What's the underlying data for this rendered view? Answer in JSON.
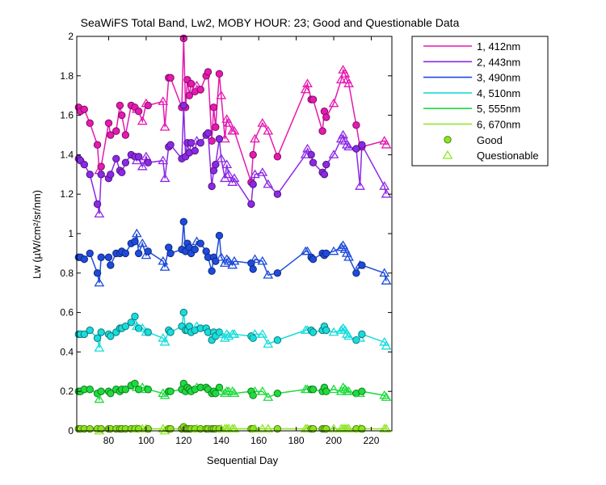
{
  "chart_data": {
    "type": "line",
    "title": "SeaWiFS Total Band,  Lw2, MOBY HOUR: 23;  Good and Questionable Data",
    "xlabel": "Sequential Day",
    "ylabel": "Lw (µW/cm²/sr/nm)",
    "xlim": [
      63,
      231
    ],
    "ylim": [
      0,
      2
    ],
    "xticks": [
      80,
      100,
      120,
      140,
      160,
      180,
      200,
      220
    ],
    "yticks": [
      0,
      0.2,
      0.4,
      0.6,
      0.8,
      1,
      1.2,
      1.4,
      1.6,
      1.8,
      2
    ],
    "grid": false,
    "legend_position": "outside-top-right",
    "x": [
      64,
      65,
      67,
      70,
      74,
      75,
      76,
      80,
      81,
      84,
      86,
      87,
      89,
      92,
      94,
      95,
      96,
      98,
      100,
      101,
      109,
      110,
      112,
      113,
      119,
      120,
      121,
      122,
      123,
      124,
      126,
      127,
      129,
      132,
      133,
      135,
      136,
      137,
      139,
      140,
      142,
      143,
      144,
      146,
      147,
      156,
      157,
      158,
      162,
      165,
      170,
      185,
      186,
      188,
      189,
      194,
      195,
      196,
      200,
      204,
      205,
      206,
      207,
      208,
      212,
      214,
      215,
      227,
      228
    ],
    "series": [
      {
        "name": "1, 412nm",
        "color": "#e619b0",
        "values": [
          1.64,
          1.62,
          1.63,
          1.56,
          1.45,
          1.32,
          1.34,
          1.56,
          1.5,
          1.52,
          1.65,
          1.6,
          1.5,
          1.65,
          1.64,
          1.63,
          1.62,
          1.57,
          1.66,
          1.65,
          1.67,
          1.54,
          1.79,
          1.79,
          1.64,
          1.99,
          1.64,
          1.78,
          1.7,
          1.76,
          1.72,
          1.75,
          1.73,
          1.8,
          1.82,
          1.47,
          1.64,
          1.54,
          1.81,
          1.7,
          1.48,
          1.58,
          1.56,
          1.52,
          1.52,
          1.26,
          1.4,
          1.48,
          1.56,
          1.52,
          1.39,
          1.73,
          1.76,
          1.68,
          1.68,
          1.52,
          1.62,
          1.59,
          1.66,
          1.78,
          1.83,
          1.81,
          1.78,
          1.76,
          1.55,
          1.44,
          1.44,
          1.47,
          1.45
        ]
      },
      {
        "name": "2, 443nm",
        "color": "#8c28e6",
        "values": [
          1.38,
          1.37,
          1.35,
          1.3,
          1.15,
          1.1,
          1.3,
          1.28,
          1.3,
          1.38,
          1.32,
          1.31,
          1.36,
          1.4,
          1.39,
          1.37,
          1.39,
          1.34,
          1.39,
          1.36,
          1.37,
          1.28,
          1.44,
          1.45,
          1.38,
          1.65,
          1.39,
          1.46,
          1.41,
          1.46,
          1.42,
          1.47,
          1.46,
          1.5,
          1.51,
          1.24,
          1.32,
          1.35,
          1.48,
          1.38,
          1.28,
          1.35,
          1.3,
          1.26,
          1.28,
          1.15,
          1.25,
          1.3,
          1.31,
          1.25,
          1.2,
          1.4,
          1.43,
          1.4,
          1.36,
          1.31,
          1.3,
          1.35,
          1.4,
          1.48,
          1.5,
          1.47,
          1.45,
          1.44,
          1.43,
          1.24,
          1.45,
          1.24,
          1.2
        ]
      },
      {
        "name": "3, 490nm",
        "color": "#1e4bdc",
        "values": [
          0.88,
          0.88,
          0.87,
          0.9,
          0.8,
          0.75,
          0.88,
          0.88,
          0.84,
          0.9,
          0.9,
          0.91,
          0.9,
          0.95,
          0.96,
          1.0,
          0.9,
          0.95,
          0.89,
          0.91,
          0.86,
          0.83,
          0.93,
          0.9,
          0.92,
          1.06,
          0.91,
          0.95,
          0.93,
          0.9,
          0.92,
          0.96,
          0.95,
          0.91,
          0.88,
          0.81,
          0.88,
          0.86,
          0.99,
          0.88,
          0.85,
          0.87,
          0.86,
          0.84,
          0.86,
          0.85,
          0.82,
          0.87,
          0.86,
          0.79,
          0.8,
          0.91,
          0.91,
          0.88,
          0.87,
          0.9,
          0.89,
          0.9,
          0.91,
          0.93,
          0.94,
          0.92,
          0.9,
          0.88,
          0.8,
          0.84,
          0.84,
          0.8,
          0.76
        ]
      },
      {
        "name": "4, 510nm",
        "color": "#19dcdc",
        "values": [
          0.49,
          0.49,
          0.49,
          0.51,
          0.47,
          0.42,
          0.5,
          0.49,
          0.48,
          0.5,
          0.52,
          0.52,
          0.53,
          0.55,
          0.58,
          0.53,
          0.52,
          0.52,
          0.5,
          0.5,
          0.47,
          0.45,
          0.51,
          0.5,
          0.53,
          0.6,
          0.51,
          0.51,
          0.53,
          0.5,
          0.51,
          0.53,
          0.52,
          0.52,
          0.5,
          0.46,
          0.5,
          0.48,
          0.5,
          0.49,
          0.47,
          0.49,
          0.48,
          0.49,
          0.49,
          0.48,
          0.47,
          0.49,
          0.49,
          0.44,
          0.46,
          0.51,
          0.51,
          0.51,
          0.5,
          0.51,
          0.53,
          0.51,
          0.5,
          0.51,
          0.52,
          0.51,
          0.49,
          0.48,
          0.46,
          0.47,
          0.49,
          0.45,
          0.43
        ]
      },
      {
        "name": "5, 555nm",
        "color": "#1edc3c",
        "values": [
          0.2,
          0.2,
          0.21,
          0.21,
          0.19,
          0.16,
          0.2,
          0.2,
          0.19,
          0.21,
          0.2,
          0.21,
          0.21,
          0.23,
          0.24,
          0.22,
          0.21,
          0.22,
          0.21,
          0.21,
          0.19,
          0.18,
          0.2,
          0.2,
          0.21,
          0.24,
          0.2,
          0.22,
          0.21,
          0.2,
          0.21,
          0.22,
          0.22,
          0.22,
          0.21,
          0.19,
          0.2,
          0.19,
          0.22,
          0.2,
          0.19,
          0.2,
          0.2,
          0.2,
          0.19,
          0.2,
          0.18,
          0.2,
          0.2,
          0.17,
          0.19,
          0.21,
          0.21,
          0.21,
          0.21,
          0.2,
          0.22,
          0.2,
          0.21,
          0.2,
          0.22,
          0.21,
          0.2,
          0.2,
          0.19,
          0.19,
          0.2,
          0.18,
          0.17
        ]
      },
      {
        "name": "6, 670nm",
        "color": "#8ce61e",
        "values": [
          0.01,
          0.01,
          0.01,
          0.01,
          0.01,
          0.0,
          0.01,
          0.01,
          0.01,
          0.01,
          0.01,
          0.01,
          0.01,
          0.01,
          0.01,
          0.01,
          0.01,
          0.01,
          0.01,
          0.01,
          0.01,
          0.0,
          0.01,
          0.01,
          0.01,
          0.02,
          0.01,
          0.01,
          0.01,
          0.01,
          0.01,
          0.01,
          0.01,
          0.01,
          0.01,
          0.01,
          0.01,
          0.01,
          0.01,
          0.01,
          0.01,
          0.01,
          0.01,
          0.01,
          0.01,
          0.01,
          0.01,
          0.01,
          0.01,
          0.01,
          0.01,
          0.01,
          0.01,
          0.01,
          0.01,
          0.01,
          0.01,
          0.01,
          0.01,
          0.01,
          0.01,
          0.01,
          0.01,
          0.01,
          0.01,
          0.01,
          0.01,
          0.01,
          0.01
        ]
      }
    ],
    "quality": [
      "G",
      "G",
      "G",
      "G",
      "G",
      "Q",
      "G",
      "G",
      "G",
      "G",
      "G",
      "G",
      "G",
      "G",
      "G",
      "Q",
      "G",
      "Q",
      "Q",
      "G",
      "Q",
      "Q",
      "G",
      "G",
      "G",
      "G",
      "G",
      "G",
      "G",
      "G",
      "G",
      "Q",
      "G",
      "G",
      "G",
      "G",
      "G",
      "G",
      "G",
      "Q",
      "Q",
      "Q",
      "Q",
      "Q",
      "Q",
      "G",
      "G",
      "Q",
      "Q",
      "Q",
      "G",
      "Q",
      "Q",
      "G",
      "G",
      "G",
      "G",
      "G",
      "Q",
      "Q",
      "Q",
      "Q",
      "Q",
      "Q",
      "G",
      "Q",
      "G",
      "Q",
      "Q"
    ],
    "marker_legend": [
      {
        "label": "Good",
        "marker": "circle"
      },
      {
        "label": "Questionable",
        "marker": "triangle"
      }
    ],
    "marker_legend_color": "#8ce61e"
  }
}
